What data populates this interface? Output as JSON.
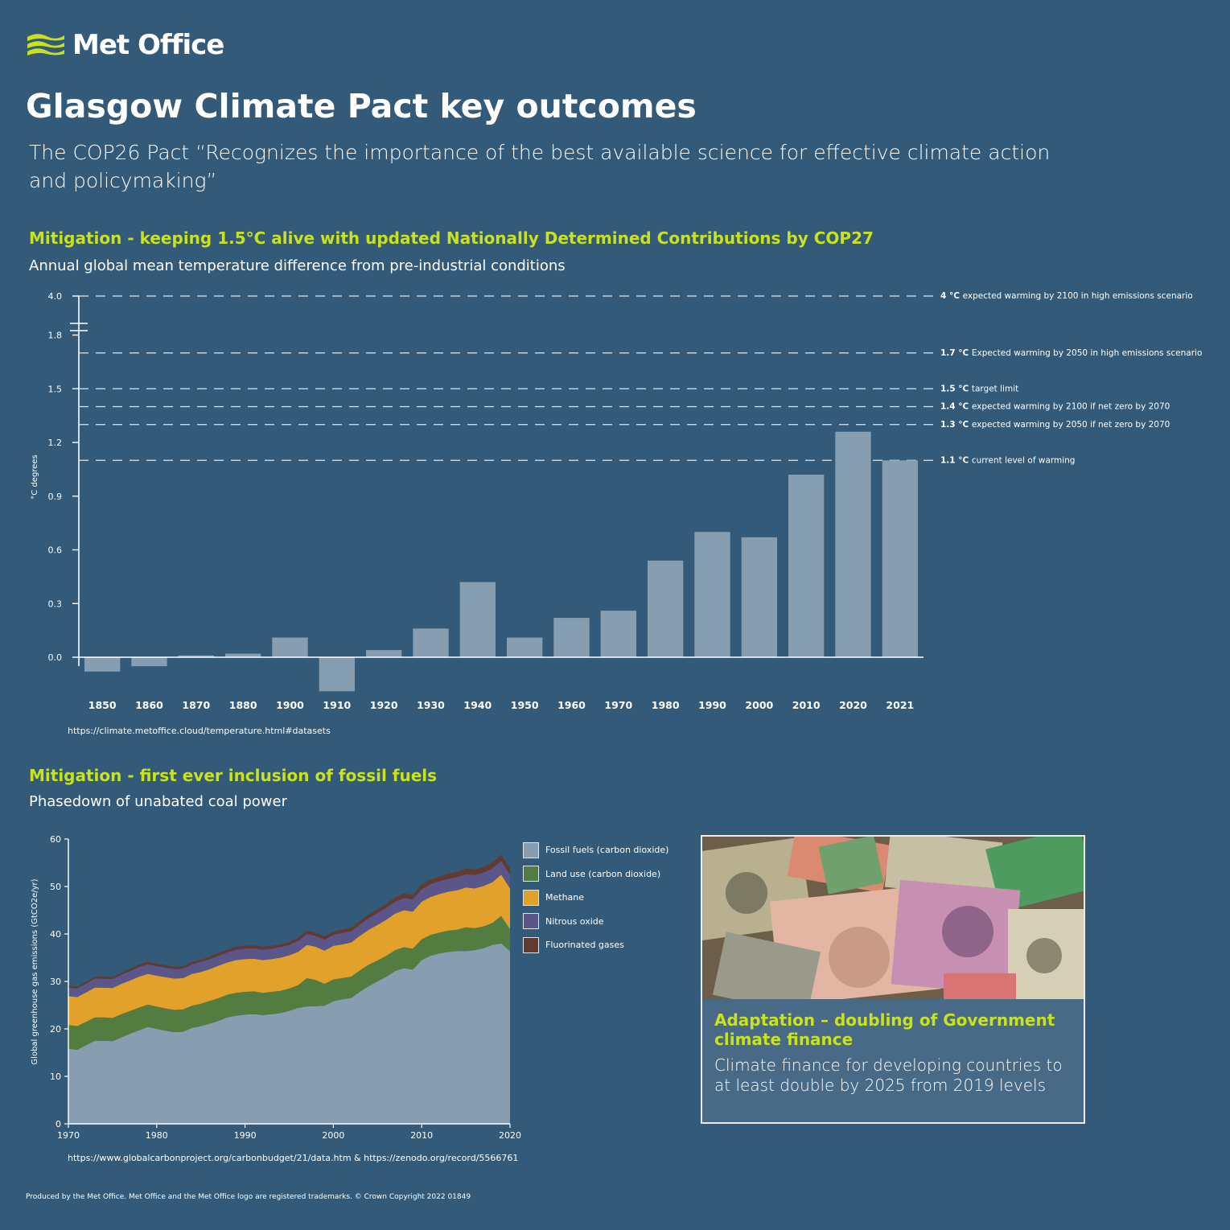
{
  "logo": {
    "text": "Met Office",
    "icon": "met-office-wave-icon",
    "accent": "#c8e21e"
  },
  "title": "Glasgow Climate Pact key outcomes",
  "subtitle": "The COP26 Pact “Recognizes the importance of the best available science for effective climate action and policymaking”",
  "section1": {
    "heading": "Mitigation - keeping 1.5°C alive with updated Nationally Determined Contributions by COP27",
    "subheading": "Annual global mean temperature difference from pre-industrial conditions",
    "source": "https://climate.metoffice.cloud/temperature.html#datasets"
  },
  "section2": {
    "heading": "Mitigation - first ever inclusion of fossil fuels",
    "subheading": "Phasedown of unabated coal power",
    "source": "https://www.globalcarbonproject.org/carbonbudget/21/data.htm & https://zenodo.org/record/5566761"
  },
  "adaptation": {
    "heading": "Adaptation – doubling of Government climate finance",
    "text": "Climate finance for developing countries to at least double by 2025 from 2019 levels",
    "image": "banknotes-photo"
  },
  "footer": "Produced by the Met Office. Met Office and the Met Office logo are registered trademarks. © Crown Copyright 2022 01849",
  "chart_data": [
    {
      "type": "bar",
      "ylabel": "°C degrees",
      "yticks": [
        "0.0",
        "0.3",
        "0.6",
        "0.9",
        "1.2",
        "1.5",
        "1.8",
        "4.0"
      ],
      "ylim": [
        -0.2,
        4.0
      ],
      "axis_break": "between 1.8 and 4.0",
      "categories": [
        "1850",
        "1860",
        "1870",
        "1880",
        "1900",
        "1910",
        "1920",
        "1930",
        "1940",
        "1950",
        "1960",
        "1970",
        "1980",
        "1990",
        "2000",
        "2010",
        "2020",
        "2021"
      ],
      "values": [
        -0.08,
        -0.05,
        0.01,
        0.02,
        0.11,
        -0.19,
        0.04,
        0.16,
        0.42,
        0.11,
        0.22,
        0.26,
        0.54,
        0.7,
        0.67,
        1.02,
        1.26,
        1.1
      ],
      "bar_color": "#879eb0",
      "reference_lines": [
        {
          "value": 4.0,
          "bold": "4 °C",
          "label": "expected warming by 2100 in high emissions scenario"
        },
        {
          "value": 1.7,
          "bold": "1.7 °C",
          "label": "Expected warming by 2050 in high emissions scenario"
        },
        {
          "value": 1.5,
          "bold": "1.5 °C",
          "label": "target limit"
        },
        {
          "value": 1.4,
          "bold": "1.4 °C",
          "label": "expected warming by 2100 if net zero by 2070"
        },
        {
          "value": 1.3,
          "bold": "1.3 °C",
          "label": "expected warming by 2050 if net zero by 2070"
        },
        {
          "value": 1.1,
          "bold": "1.1 °C",
          "label": "current level of warming"
        }
      ]
    },
    {
      "type": "area",
      "stacked": true,
      "ylabel": "Global greenhouse gas emissions (GtCO2e/yr)",
      "xlim": [
        1970,
        2020
      ],
      "ylim": [
        0,
        60
      ],
      "xticks": [
        "1970",
        "1980",
        "1990",
        "2000",
        "2010",
        "2020"
      ],
      "yticks": [
        "0",
        "10",
        "20",
        "30",
        "40",
        "50",
        "60"
      ],
      "x": [
        1970,
        1971,
        1972,
        1973,
        1974,
        1975,
        1976,
        1977,
        1978,
        1979,
        1980,
        1981,
        1982,
        1983,
        1984,
        1985,
        1986,
        1987,
        1988,
        1989,
        1990,
        1991,
        1992,
        1993,
        1994,
        1995,
        1996,
        1997,
        1998,
        1999,
        2000,
        2001,
        2002,
        2003,
        2004,
        2005,
        2006,
        2007,
        2008,
        2009,
        2010,
        2011,
        2012,
        2013,
        2014,
        2015,
        2016,
        2017,
        2018,
        2019,
        2020
      ],
      "series": [
        {
          "name": "Fossil fuels (carbon dioxide)",
          "color": "#879eb0",
          "values": [
            15.8,
            15.6,
            16.6,
            17.5,
            17.5,
            17.4,
            18.2,
            19.0,
            19.7,
            20.4,
            20.0,
            19.6,
            19.3,
            19.4,
            20.2,
            20.6,
            21.1,
            21.7,
            22.4,
            22.8,
            23.0,
            23.1,
            22.9,
            23.1,
            23.3,
            23.8,
            24.4,
            24.7,
            24.8,
            24.9,
            25.8,
            26.2,
            26.5,
            27.8,
            29.0,
            30.0,
            31.0,
            32.2,
            32.8,
            32.5,
            34.5,
            35.4,
            35.9,
            36.2,
            36.4,
            36.4,
            36.6,
            37.0,
            37.7,
            38.0,
            36.4
          ]
        },
        {
          "name": "Land use (carbon dioxide)",
          "color": "#537c40",
          "values": [
            5.0,
            5.0,
            4.9,
            4.9,
            4.9,
            4.9,
            4.9,
            4.8,
            4.8,
            4.7,
            4.7,
            4.7,
            4.7,
            4.7,
            4.7,
            4.7,
            4.8,
            4.8,
            4.8,
            4.8,
            4.8,
            4.8,
            4.7,
            4.7,
            4.7,
            4.7,
            4.8,
            6.0,
            5.5,
            4.6,
            4.6,
            4.5,
            4.5,
            4.5,
            4.5,
            4.4,
            4.4,
            4.4,
            4.4,
            4.4,
            4.4,
            4.4,
            4.4,
            4.5,
            4.5,
            5.0,
            4.6,
            4.6,
            4.6,
            5.8,
            4.6
          ]
        },
        {
          "name": "Methane",
          "color": "#e2a12a",
          "values": [
            6.1,
            6.1,
            6.2,
            6.3,
            6.3,
            6.3,
            6.4,
            6.4,
            6.5,
            6.5,
            6.5,
            6.6,
            6.6,
            6.6,
            6.7,
            6.7,
            6.7,
            6.8,
            6.8,
            6.9,
            6.9,
            6.9,
            6.9,
            6.9,
            7.0,
            7.0,
            7.0,
            7.0,
            7.0,
            7.0,
            7.1,
            7.1,
            7.2,
            7.3,
            7.4,
            7.5,
            7.6,
            7.7,
            7.8,
            7.8,
            7.9,
            8.0,
            8.1,
            8.2,
            8.3,
            8.4,
            8.4,
            8.5,
            8.6,
            8.7,
            8.6
          ]
        },
        {
          "name": "Nitrous oxide",
          "color": "#5a5689",
          "values": [
            1.8,
            1.8,
            1.8,
            1.9,
            1.9,
            1.9,
            1.9,
            2.0,
            2.0,
            2.0,
            2.0,
            2.0,
            2.0,
            2.0,
            2.0,
            2.1,
            2.1,
            2.1,
            2.1,
            2.2,
            2.2,
            2.2,
            2.2,
            2.2,
            2.2,
            2.2,
            2.3,
            2.3,
            2.3,
            2.3,
            2.3,
            2.4,
            2.4,
            2.4,
            2.4,
            2.5,
            2.5,
            2.5,
            2.6,
            2.6,
            2.6,
            2.7,
            2.7,
            2.7,
            2.8,
            2.8,
            2.8,
            2.8,
            2.9,
            2.9,
            2.9
          ]
        },
        {
          "name": "Fluorinated gases",
          "color": "#633a30",
          "values": [
            0.4,
            0.4,
            0.4,
            0.4,
            0.4,
            0.4,
            0.4,
            0.5,
            0.5,
            0.5,
            0.5,
            0.5,
            0.5,
            0.5,
            0.5,
            0.5,
            0.5,
            0.6,
            0.6,
            0.6,
            0.6,
            0.6,
            0.6,
            0.6,
            0.6,
            0.6,
            0.7,
            0.7,
            0.7,
            0.7,
            0.7,
            0.7,
            0.7,
            0.8,
            0.8,
            0.8,
            0.8,
            0.9,
            0.9,
            0.9,
            1.0,
            1.0,
            1.0,
            1.1,
            1.1,
            1.2,
            1.2,
            1.2,
            1.3,
            1.3,
            1.3
          ]
        }
      ]
    }
  ]
}
